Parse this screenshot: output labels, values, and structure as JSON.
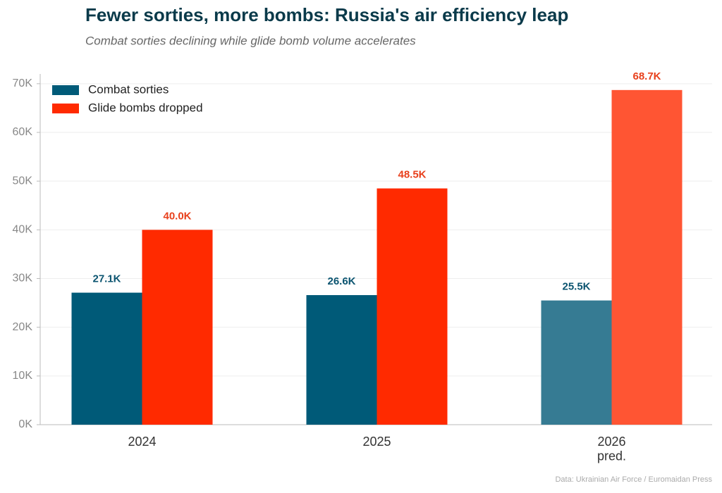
{
  "chart_data": {
    "type": "bar",
    "title": "Fewer sorties, more bombs: Russia's air efficiency leap",
    "subtitle": "Combat sorties declining while glide bomb volume accelerates",
    "source": "Data: Ukrainian Air Force / Euromaidan Press",
    "categories": [
      "2024",
      "2025",
      "2026\npred."
    ],
    "series": [
      {
        "name": "Combat sorties",
        "color": "#005a78",
        "colors": [
          "#005a78",
          "#005a78",
          "#367b93"
        ],
        "values": [
          27100,
          26600,
          25500
        ],
        "value_labels": [
          "27.1K",
          "26.6K",
          "25.5K"
        ],
        "label_color": "#0b5470"
      },
      {
        "name": "Glide bombs dropped",
        "color": "#ff2a00",
        "colors": [
          "#ff2a00",
          "#ff2a00",
          "#ff5533"
        ],
        "values": [
          40000,
          48500,
          68700
        ],
        "value_labels": [
          "40.0K",
          "48.5K",
          "68.7K"
        ],
        "label_color": "#e8401c"
      }
    ],
    "ylim": [
      0,
      72000
    ],
    "yticks": [
      {
        "value": 0,
        "label": "0K"
      },
      {
        "value": 10000,
        "label": "10K"
      },
      {
        "value": 20000,
        "label": "20K"
      },
      {
        "value": 30000,
        "label": "30K"
      },
      {
        "value": 40000,
        "label": "40K"
      },
      {
        "value": 50000,
        "label": "50K"
      },
      {
        "value": 60000,
        "label": "60K"
      },
      {
        "value": 70000,
        "label": "70K"
      }
    ],
    "grid": true,
    "legend": "upper-left"
  }
}
